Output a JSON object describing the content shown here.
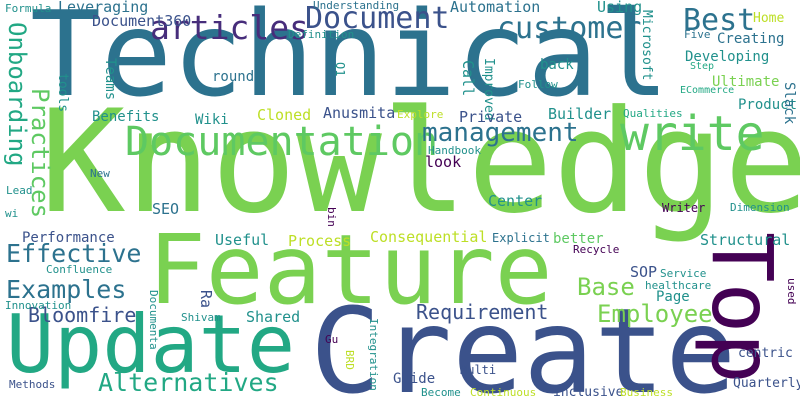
{
  "words": [
    {
      "text": "Technical",
      "color": "#2c728e"
    },
    {
      "text": "Knowledge",
      "color": "#7ad151"
    },
    {
      "text": "Feature",
      "color": "#7ad151"
    },
    {
      "text": "Create",
      "color": "#3b528b"
    },
    {
      "text": "Update",
      "color": "#22a884"
    },
    {
      "text": "Top",
      "color": "#440154"
    },
    {
      "text": "write",
      "color": "#5ec962"
    },
    {
      "text": "Documentation",
      "color": "#5ec962"
    },
    {
      "text": "Document",
      "color": "#3b528b"
    },
    {
      "text": "articles",
      "color": "#472d7b"
    },
    {
      "text": "customer",
      "color": "#2c728e"
    },
    {
      "text": "Best",
      "color": "#2c728e"
    },
    {
      "text": "management",
      "color": "#2c728e"
    },
    {
      "text": "Onboarding",
      "color": "#22a884"
    },
    {
      "text": "Practices",
      "color": "#5ec962"
    },
    {
      "text": "Effective",
      "color": "#2c728e"
    },
    {
      "text": "Examples",
      "color": "#2c728e"
    },
    {
      "text": "Alternatives",
      "color": "#22a884"
    },
    {
      "text": "Bloomfire",
      "color": "#3b528b"
    },
    {
      "text": "Requirement",
      "color": "#3b528b"
    },
    {
      "text": "Employee",
      "color": "#7ad151"
    },
    {
      "text": "Base",
      "color": "#7ad151"
    },
    {
      "text": "Leveraging",
      "color": "#2c728e"
    },
    {
      "text": "Document360",
      "color": "#3b528b"
    },
    {
      "text": "Automation",
      "color": "#2c728e"
    },
    {
      "text": "Understanding",
      "color": "#2c728e"
    },
    {
      "text": "Using",
      "color": "#21918c"
    },
    {
      "text": "Microsoft",
      "color": "#21918c"
    },
    {
      "text": "Home",
      "color": "#bddf26"
    },
    {
      "text": "Creating",
      "color": "#2c728e"
    },
    {
      "text": "Five",
      "color": "#2c728e"
    },
    {
      "text": "Developing",
      "color": "#21918c"
    },
    {
      "text": "Ultimate",
      "color": "#7ad151"
    },
    {
      "text": "Product",
      "color": "#21918c"
    },
    {
      "text": "Slack",
      "color": "#2c728e"
    },
    {
      "text": "Formula",
      "color": "#21918c"
    },
    {
      "text": "Definition",
      "color": "#21918c"
    },
    {
      "text": "Teams",
      "color": "#21918c"
    },
    {
      "text": "tools",
      "color": "#21918c"
    },
    {
      "text": "round",
      "color": "#2c728e"
    },
    {
      "text": "Q1",
      "color": "#21918c"
    },
    {
      "text": "Call",
      "color": "#21918c"
    },
    {
      "text": "Improved",
      "color": "#21918c"
    },
    {
      "text": "back",
      "color": "#21918c"
    },
    {
      "text": "Follow",
      "color": "#21918c"
    },
    {
      "text": "Builder",
      "color": "#21918c"
    },
    {
      "text": "Benefits",
      "color": "#21918c"
    },
    {
      "text": "Wiki",
      "color": "#21918c"
    },
    {
      "text": "Cloned",
      "color": "#bddf26"
    },
    {
      "text": "Anusmita",
      "color": "#3b528b"
    },
    {
      "text": "Private",
      "color": "#3b528b"
    },
    {
      "text": "Explore",
      "color": "#bddf26"
    },
    {
      "text": "Qualities",
      "color": "#22a884"
    },
    {
      "text": "Handbook",
      "color": "#21918c"
    },
    {
      "text": "look",
      "color": "#440154"
    },
    {
      "text": "New",
      "color": "#2c728e"
    },
    {
      "text": "Lead",
      "color": "#21918c"
    },
    {
      "text": "wi",
      "color": "#21918c"
    },
    {
      "text": "SEO",
      "color": "#2c728e"
    },
    {
      "text": "bin",
      "color": "#440154"
    },
    {
      "text": "Center",
      "color": "#21918c"
    },
    {
      "text": "Writer",
      "color": "#440154"
    },
    {
      "text": "Dimension",
      "color": "#21918c"
    },
    {
      "text": "Performance",
      "color": "#3b528b"
    },
    {
      "text": "Useful",
      "color": "#21918c"
    },
    {
      "text": "Process",
      "color": "#bddf26"
    },
    {
      "text": "Consequential",
      "color": "#bddf26"
    },
    {
      "text": "Explicit",
      "color": "#2c728e"
    },
    {
      "text": "better",
      "color": "#5ec962"
    },
    {
      "text": "Structural",
      "color": "#21918c"
    },
    {
      "text": "Recycle",
      "color": "#440154"
    },
    {
      "text": "Confluence",
      "color": "#21918c"
    },
    {
      "text": "SOP",
      "color": "#3b528b"
    },
    {
      "text": "Service",
      "color": "#21918c"
    },
    {
      "text": "healthcare",
      "color": "#21918c"
    },
    {
      "text": "Page",
      "color": "#21918c"
    },
    {
      "text": "used",
      "color": "#440154"
    },
    {
      "text": "Ra",
      "color": "#3b528b"
    },
    {
      "text": "Innovation",
      "color": "#21918c"
    },
    {
      "text": "Shivam",
      "color": "#21918c"
    },
    {
      "text": "Shared",
      "color": "#21918c"
    },
    {
      "text": "Documenta",
      "color": "#21918c"
    },
    {
      "text": "Gu",
      "color": "#440154"
    },
    {
      "text": "BRD",
      "color": "#bddf26"
    },
    {
      "text": "Integration",
      "color": "#21918c"
    },
    {
      "text": "centric",
      "color": "#3b528b"
    },
    {
      "text": "Methods",
      "color": "#3b528b"
    },
    {
      "text": "Guide",
      "color": "#3b528b"
    },
    {
      "text": "Multi",
      "color": "#3b528b"
    },
    {
      "text": "Become",
      "color": "#21918c"
    },
    {
      "text": "Continuous",
      "color": "#bddf26"
    },
    {
      "text": "inclusive",
      "color": "#3b528b"
    },
    {
      "text": "Business",
      "color": "#bddf26"
    },
    {
      "text": "Quarterly",
      "color": "#3b528b"
    },
    {
      "text": "Step",
      "color": "#22a884"
    },
    {
      "text": "ECommerce",
      "color": "#22a884"
    }
  ]
}
